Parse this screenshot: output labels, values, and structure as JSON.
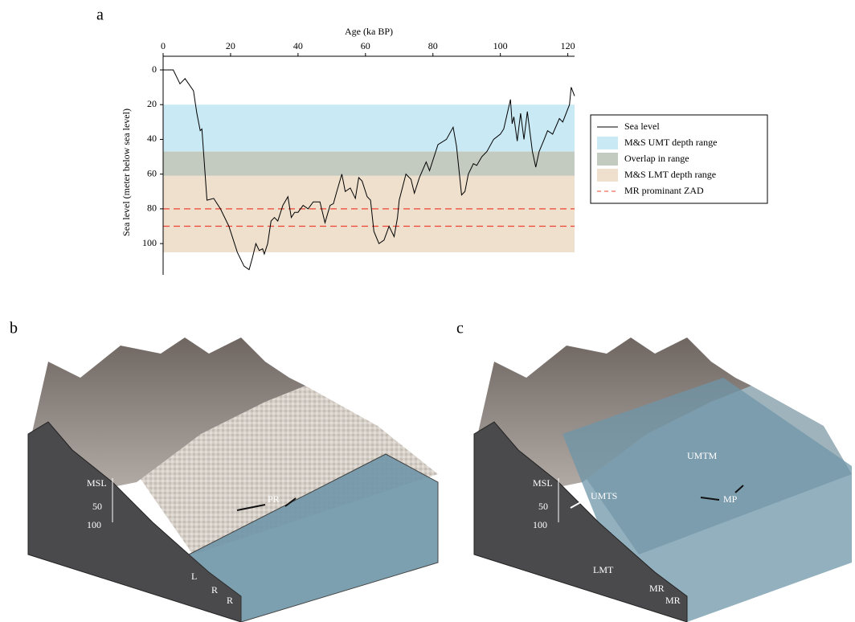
{
  "panel_labels": [
    "a",
    "b",
    "c"
  ],
  "chart_data": {
    "type": "line",
    "x_label": "Age (ka BP)",
    "y_label": "Sea level (meter below sea level)",
    "xlim": [
      0,
      122
    ],
    "xticks": [
      0,
      20,
      40,
      60,
      80,
      100,
      120
    ],
    "ylim": [
      0,
      118
    ],
    "yticks": [
      0,
      20,
      40,
      60,
      80,
      100
    ],
    "series": [
      {
        "name": "Sea level",
        "color": "#000000",
        "x": [
          0,
          3,
          5,
          6.5,
          9,
          10,
          11,
          11.5,
          13,
          15,
          17,
          19.5,
          22,
          24,
          25.5,
          26.5,
          27.5,
          28.5,
          29.5,
          30,
          31,
          32,
          33,
          34,
          35.5,
          37,
          38,
          39,
          40,
          41.5,
          43,
          44.5,
          46.5,
          48,
          49.5,
          50.5,
          51.5,
          53,
          54,
          55.5,
          57,
          58,
          59,
          60.5,
          61.5,
          62.5,
          64,
          65.5,
          67,
          68.5,
          69.5,
          70,
          72,
          73.5,
          74.5,
          76,
          78,
          79,
          80,
          81.5,
          84,
          86,
          87,
          88.5,
          89.5,
          90.5,
          92,
          93,
          94.5,
          96,
          98,
          100,
          101,
          103,
          103.5,
          104,
          105,
          106,
          107,
          108,
          109.5,
          110.5,
          111.5,
          113,
          114,
          115.5,
          117.5,
          118.5,
          120.5,
          121,
          122
        ],
        "values": [
          0,
          0,
          8,
          5,
          12,
          25,
          35,
          34,
          75,
          74,
          80,
          90,
          105,
          113,
          115,
          108,
          100,
          104,
          103,
          106,
          100,
          87,
          85,
          87,
          78,
          73,
          85,
          82,
          82,
          78,
          80,
          76,
          76,
          88,
          78,
          77,
          70,
          60,
          70,
          68,
          74,
          62,
          64,
          73,
          75,
          93,
          100,
          98,
          90,
          96,
          85,
          75,
          60,
          63,
          71,
          62,
          53,
          58,
          52,
          43,
          40,
          33,
          44,
          72,
          70,
          60,
          54,
          55,
          50,
          47,
          40,
          37,
          34,
          17,
          31,
          27,
          41,
          25,
          40,
          24,
          47,
          56,
          47,
          40,
          35,
          37,
          28,
          30,
          20,
          10,
          15
        ]
      }
    ],
    "bands": [
      {
        "name": "M&S UMT depth range",
        "color": "#c9e9f5",
        "range": [
          20,
          47
        ]
      },
      {
        "name": "Overlap in range",
        "color": "#c3cbc1",
        "range": [
          47,
          61
        ]
      },
      {
        "name": "M&S LMT depth range",
        "color": "#eee0cd",
        "range": [
          61,
          105
        ]
      }
    ],
    "hlines": {
      "name": "MR prominant ZAD",
      "color": "#ee4433",
      "values": [
        80,
        90
      ]
    }
  },
  "panel_b": {
    "labels": [
      "MSL",
      "50",
      "100",
      "PR",
      "L",
      "R",
      "R"
    ]
  },
  "panel_c": {
    "labels": [
      "MSL",
      "50",
      "100",
      "UMTS",
      "UMTM",
      "MP",
      "LMT",
      "MR",
      "MR"
    ]
  }
}
